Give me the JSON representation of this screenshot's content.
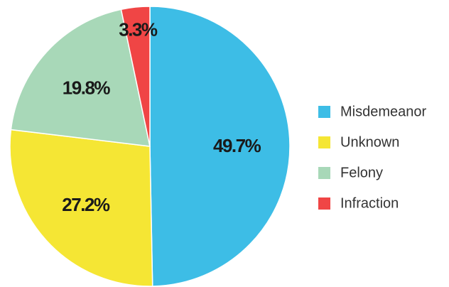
{
  "chart_data": {
    "type": "pie",
    "categories": [
      "Misdemeanor",
      "Unknown",
      "Felony",
      "Infraction"
    ],
    "values": [
      49.7,
      27.2,
      19.8,
      3.3
    ],
    "value_labels": [
      "49.7%",
      "27.2%",
      "19.8%",
      "3.3%"
    ],
    "colors": [
      "#3dbde6",
      "#f5e634",
      "#a8d8b8",
      "#f04545"
    ],
    "legend": "right"
  }
}
